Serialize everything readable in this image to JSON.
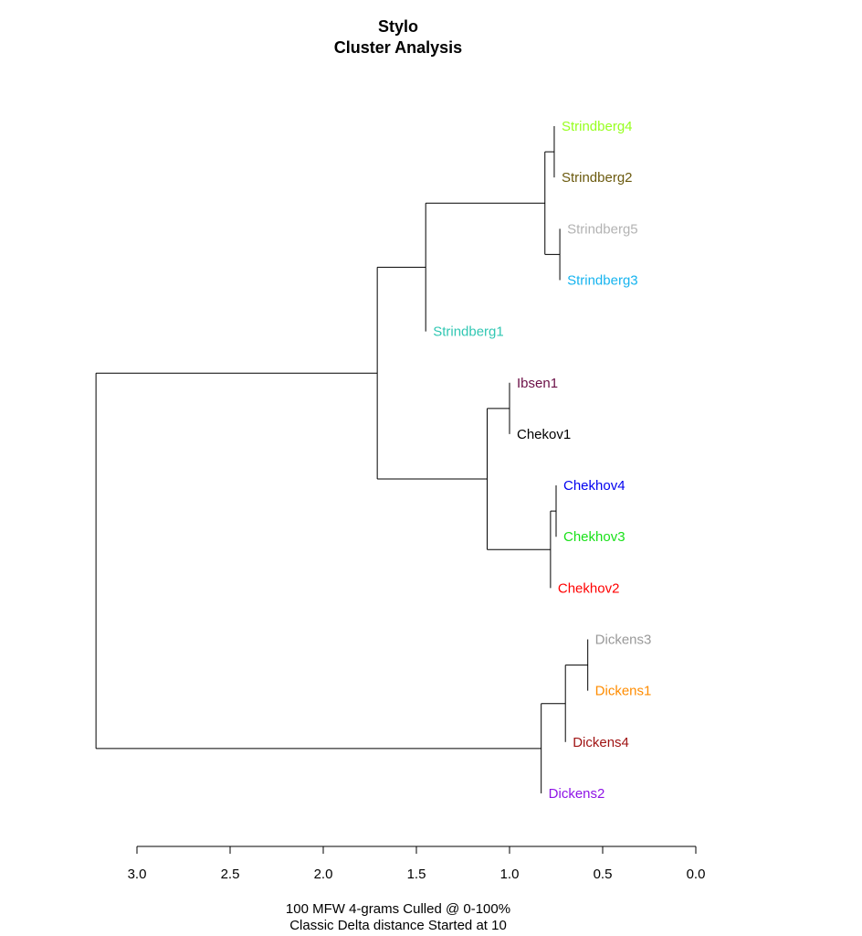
{
  "chart_data": {
    "type": "dendrogram",
    "title": [
      "Stylo",
      "Cluster Analysis"
    ],
    "subtitle": [
      "100 MFW 4-grams Culled @ 0-100%",
      "Classic Delta distance Started at 10"
    ],
    "axis": {
      "ticks": [
        3.0,
        2.5,
        2.0,
        1.5,
        1.0,
        0.5,
        0.0
      ],
      "tick_labels": [
        "3.0",
        "2.5",
        "2.0",
        "1.5",
        "1.0",
        "0.5",
        "0.0"
      ],
      "xlim": [
        3.0,
        0.0
      ]
    },
    "leaves": [
      {
        "id": "S4",
        "label": "Strindberg4",
        "color": "#97ff1f"
      },
      {
        "id": "S2",
        "label": "Strindberg2",
        "color": "#6b5a0e"
      },
      {
        "id": "S5",
        "label": "Strindberg5",
        "color": "#b3b3b3"
      },
      {
        "id": "S3",
        "label": "Strindberg3",
        "color": "#16b4ef"
      },
      {
        "id": "S1",
        "label": "Strindberg1",
        "color": "#31c7b3"
      },
      {
        "id": "I1",
        "label": "Ibsen1",
        "color": "#6b0f46"
      },
      {
        "id": "K1",
        "label": "Chekov1",
        "color": "#000000"
      },
      {
        "id": "C4",
        "label": "Chekhov4",
        "color": "#0000f0"
      },
      {
        "id": "C3",
        "label": "Chekhov3",
        "color": "#19e119"
      },
      {
        "id": "C2",
        "label": "Chekhov2",
        "color": "#ff0000"
      },
      {
        "id": "D3",
        "label": "Dickens3",
        "color": "#999999"
      },
      {
        "id": "D1",
        "label": "Dickens1",
        "color": "#ff8c00"
      },
      {
        "id": "D4",
        "label": "Dickens4",
        "color": "#a01414"
      },
      {
        "id": "D2",
        "label": "Dickens2",
        "color": "#8f14e6"
      }
    ],
    "merges": [
      {
        "id": "m1",
        "children": [
          "S4",
          "S2"
        ],
        "height": 0.76
      },
      {
        "id": "m2",
        "children": [
          "S5",
          "S3"
        ],
        "height": 0.73
      },
      {
        "id": "m3",
        "children": [
          "m1",
          "m2"
        ],
        "height": 0.81
      },
      {
        "id": "m4",
        "children": [
          "m3",
          "S1"
        ],
        "height": 1.45
      },
      {
        "id": "m5",
        "children": [
          "I1",
          "K1"
        ],
        "height": 1.0
      },
      {
        "id": "m6",
        "children": [
          "C4",
          "C3"
        ],
        "height": 0.75
      },
      {
        "id": "m7",
        "children": [
          "m6",
          "C2"
        ],
        "height": 0.78
      },
      {
        "id": "m8",
        "children": [
          "m5",
          "m7"
        ],
        "height": 1.12
      },
      {
        "id": "m9",
        "children": [
          "m4",
          "m8"
        ],
        "height": 1.71
      },
      {
        "id": "m10",
        "children": [
          "D3",
          "D1"
        ],
        "height": 0.58
      },
      {
        "id": "m11",
        "children": [
          "m10",
          "D4"
        ],
        "height": 0.7
      },
      {
        "id": "m12",
        "children": [
          "m11",
          "D2"
        ],
        "height": 0.83
      },
      {
        "id": "m13",
        "children": [
          "m9",
          "m12"
        ],
        "height": 3.22
      }
    ],
    "line_color": "#000000"
  }
}
